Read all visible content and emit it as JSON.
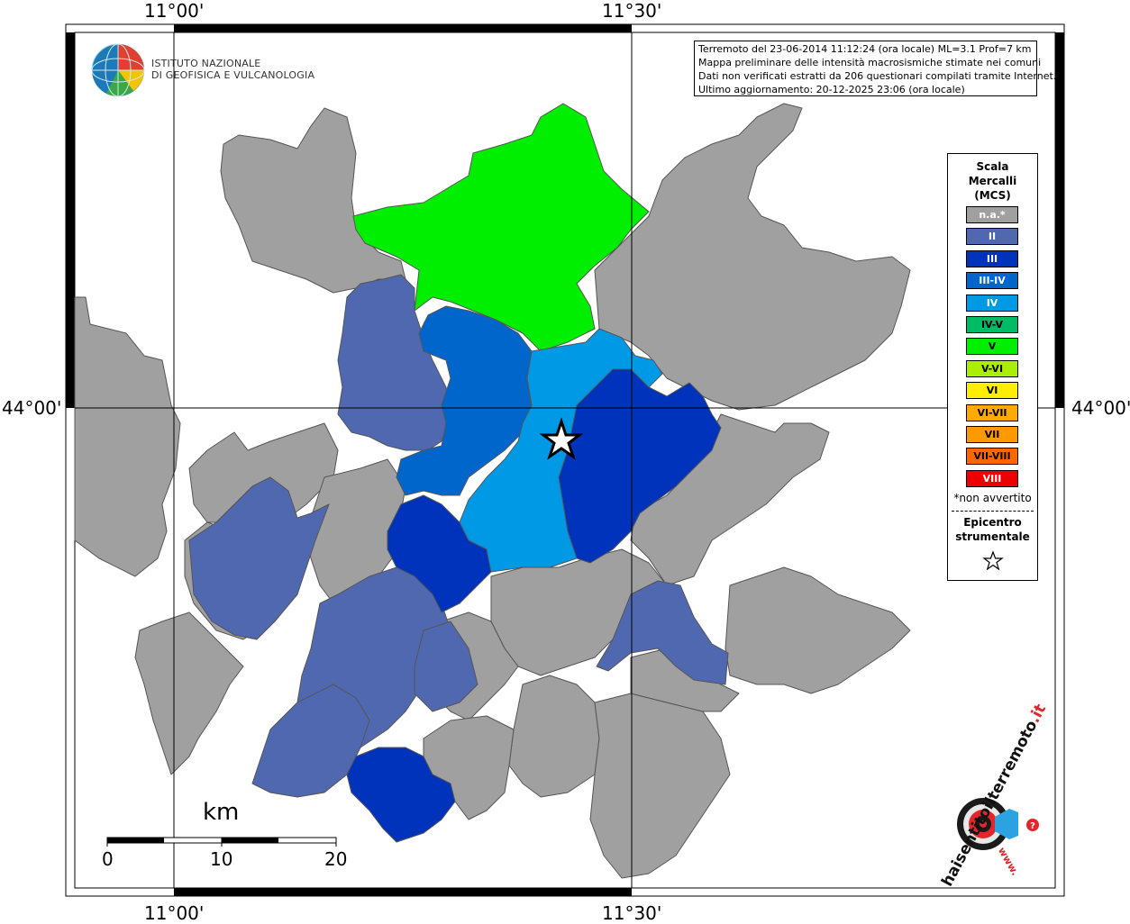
{
  "info": {
    "line1": "Terremoto del 23-06-2014 11:12:24 (ora locale) ML=3.1 Prof=7 km",
    "line2": "Mappa preliminare delle intensità macrosismiche stimate nei comuni",
    "line3": "Dati non verificati estratti da 206 questionari compilati tramite Internet.",
    "line4": "Ultimo aggiornamento: 20-12-2025 23:06 (ora locale)"
  },
  "institute": {
    "line1": "ISTITUTO NAZIONALE",
    "line2": "DI GEOFISICA E VULCANOLOGIA"
  },
  "coords": {
    "lon_left": "11°00'",
    "lon_right": "11°30'",
    "lat": "44°00'"
  },
  "legend": {
    "title1": "Scala",
    "title2": "Mercalli",
    "title3": "(MCS)",
    "items": [
      {
        "label": "n.a.*",
        "color": "#a0a0a0"
      },
      {
        "label": "II",
        "color": "#4f68b0"
      },
      {
        "label": "III",
        "color": "#0033bb"
      },
      {
        "label": "III-IV",
        "color": "#0066cc"
      },
      {
        "label": "IV",
        "color": "#0099e6"
      },
      {
        "label": "IV-V",
        "color": "#00bb66"
      },
      {
        "label": "V",
        "color": "#00ee00"
      },
      {
        "label": "V-VI",
        "color": "#aaee00"
      },
      {
        "label": "VI",
        "color": "#ffee00"
      },
      {
        "label": "VI-VII",
        "color": "#ffaa00"
      },
      {
        "label": "VII",
        "color": "#ff9900"
      },
      {
        "label": "VII-VIII",
        "color": "#ff6600"
      },
      {
        "label": "VIII",
        "color": "#ee0000"
      }
    ],
    "note": "*non avvertito",
    "epicentre1": "Epicentro",
    "epicentre2": "strumentale"
  },
  "scale_bar": {
    "unit": "km",
    "ticks": [
      "0",
      "10",
      "20"
    ]
  },
  "watermark": {
    "text": "haisentitoilterremoto",
    "suffix": ".it",
    "prefix": "www."
  }
}
